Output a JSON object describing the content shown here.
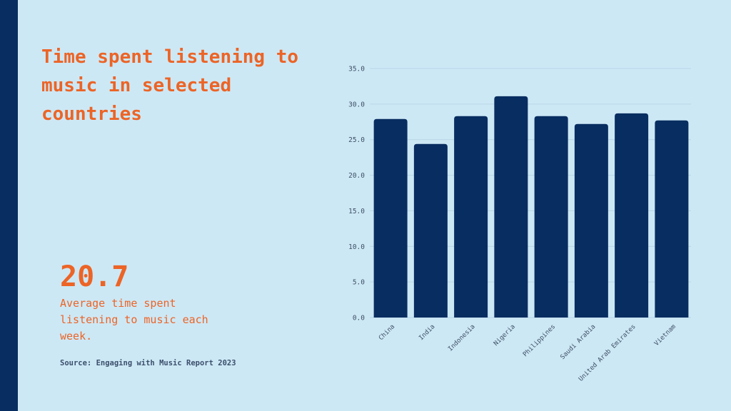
{
  "header": {
    "title": "Time spent listening to music in selected countries"
  },
  "highlight": {
    "value": "20.7",
    "caption": "Average time spent listening to music each week."
  },
  "footer": {
    "source": "Source: Engaging with Music Report 2023"
  },
  "colors": {
    "background": "#cde8f5",
    "accent": "#ec6426",
    "bar": "#082d60",
    "side_bar": "#082d60"
  },
  "chart_data": {
    "type": "bar",
    "categories": [
      "China",
      "India",
      "Indonesia",
      "Nigeria",
      "Philippines",
      "Saudi Arabia",
      "United Arab Emirates",
      "Vietnam"
    ],
    "values": [
      27.9,
      24.4,
      28.3,
      31.1,
      28.3,
      27.2,
      28.7,
      27.7
    ],
    "y_ticks": [
      "0.0",
      "5.0",
      "10.0",
      "15.0",
      "20.0",
      "25.0",
      "30.0",
      "35.0"
    ],
    "ylim": [
      0,
      35
    ],
    "grid": true
  }
}
